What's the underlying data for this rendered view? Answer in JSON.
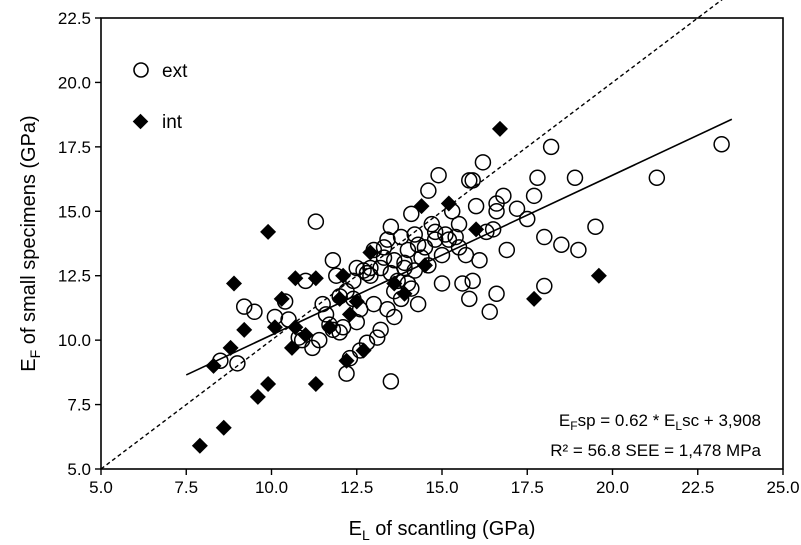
{
  "chart_data": {
    "type": "scatter",
    "xlabel": {
      "main": "E",
      "sub": "L",
      "rest": " of scantling (GPa)"
    },
    "ylabel": {
      "main": "E",
      "sub": "F",
      "rest": " of small specimens (GPa)"
    },
    "xlim": [
      5.0,
      25.0
    ],
    "ylim": [
      5.0,
      22.5
    ],
    "xticks": [
      "5.0",
      "7.5",
      "10.0",
      "12.5",
      "15.0",
      "17.5",
      "20.0",
      "22.5",
      "25.0"
    ],
    "yticks": [
      "5.0",
      "7.5",
      "10.0",
      "12.5",
      "15.0",
      "17.5",
      "20.0",
      "22.5"
    ],
    "grid": false,
    "legend_position": "top-left",
    "series": [
      {
        "name": "ext",
        "marker": "open-circle",
        "color": "#000000",
        "points": [
          [
            23.2,
            17.6
          ],
          [
            21.3,
            16.3
          ],
          [
            19.5,
            14.4
          ],
          [
            19.0,
            13.5
          ],
          [
            18.9,
            16.3
          ],
          [
            18.5,
            13.7
          ],
          [
            18.2,
            17.5
          ],
          [
            18.0,
            14.0
          ],
          [
            18.0,
            12.1
          ],
          [
            17.8,
            16.3
          ],
          [
            17.7,
            15.6
          ],
          [
            17.5,
            14.7
          ],
          [
            16.9,
            13.5
          ],
          [
            16.8,
            15.6
          ],
          [
            16.6,
            15.3
          ],
          [
            16.6,
            15.0
          ],
          [
            16.6,
            11.8
          ],
          [
            16.5,
            14.3
          ],
          [
            16.4,
            11.1
          ],
          [
            16.2,
            16.9
          ],
          [
            16.1,
            13.1
          ],
          [
            15.9,
            16.2
          ],
          [
            15.8,
            16.2
          ],
          [
            15.8,
            11.6
          ],
          [
            15.7,
            13.3
          ],
          [
            15.6,
            12.2
          ],
          [
            15.5,
            13.6
          ],
          [
            15.4,
            14.0
          ],
          [
            15.3,
            15.0
          ],
          [
            15.1,
            14.1
          ],
          [
            15.0,
            13.3
          ],
          [
            14.9,
            16.4
          ],
          [
            14.8,
            13.9
          ],
          [
            14.7,
            14.5
          ],
          [
            14.6,
            15.8
          ],
          [
            14.5,
            13.6
          ],
          [
            14.4,
            13.2
          ],
          [
            14.3,
            13.7
          ],
          [
            14.2,
            14.1
          ],
          [
            14.2,
            12.7
          ],
          [
            14.1,
            14.9
          ],
          [
            14.0,
            13.5
          ],
          [
            14.0,
            12.2
          ],
          [
            13.9,
            13.0
          ],
          [
            13.8,
            11.6
          ],
          [
            13.7,
            12.3
          ],
          [
            13.6,
            13.1
          ],
          [
            13.6,
            11.9
          ],
          [
            13.5,
            14.4
          ],
          [
            13.5,
            12.6
          ],
          [
            13.4,
            13.9
          ],
          [
            13.4,
            11.2
          ],
          [
            13.3,
            13.6
          ],
          [
            13.3,
            13.2
          ],
          [
            13.2,
            12.8
          ],
          [
            13.2,
            10.4
          ],
          [
            13.1,
            10.1
          ],
          [
            13.0,
            13.5
          ],
          [
            12.9,
            12.8
          ],
          [
            12.8,
            12.6
          ],
          [
            12.8,
            9.9
          ],
          [
            12.7,
            12.7
          ],
          [
            12.6,
            11.2
          ],
          [
            12.5,
            12.8
          ],
          [
            12.5,
            10.7
          ],
          [
            12.4,
            12.3
          ],
          [
            12.3,
            9.3
          ],
          [
            12.2,
            8.7
          ],
          [
            12.1,
            10.5
          ],
          [
            12.0,
            11.7
          ],
          [
            12.0,
            10.3
          ],
          [
            11.9,
            12.5
          ],
          [
            11.8,
            13.1
          ],
          [
            11.7,
            10.6
          ],
          [
            11.5,
            11.4
          ],
          [
            11.3,
            14.6
          ],
          [
            11.2,
            9.7
          ],
          [
            11.0,
            12.3
          ],
          [
            10.9,
            10.0
          ],
          [
            10.8,
            10.1
          ],
          [
            10.5,
            10.8
          ],
          [
            10.1,
            10.9
          ],
          [
            9.5,
            11.1
          ],
          [
            9.2,
            11.3
          ],
          [
            9.0,
            9.1
          ],
          [
            8.5,
            9.2
          ],
          [
            13.5,
            8.4
          ],
          [
            16.0,
            15.2
          ],
          [
            15.9,
            12.3
          ],
          [
            15.2,
            13.9
          ],
          [
            14.6,
            12.9
          ],
          [
            14.1,
            12.0
          ],
          [
            13.8,
            14.0
          ],
          [
            12.9,
            12.5
          ],
          [
            12.2,
            11.9
          ],
          [
            11.6,
            11.0
          ],
          [
            10.4,
            11.5
          ],
          [
            15.5,
            14.5
          ],
          [
            14.8,
            14.2
          ],
          [
            13.9,
            12.8
          ],
          [
            13.0,
            11.4
          ],
          [
            12.4,
            11.6
          ],
          [
            11.8,
            10.4
          ],
          [
            16.3,
            14.2
          ],
          [
            17.2,
            15.1
          ],
          [
            15.0,
            12.2
          ],
          [
            14.3,
            11.4
          ],
          [
            13.6,
            10.9
          ],
          [
            12.6,
            9.6
          ],
          [
            11.4,
            10.0
          ]
        ]
      },
      {
        "name": "int",
        "marker": "filled-diamond",
        "color": "#000000",
        "points": [
          [
            16.7,
            18.2
          ],
          [
            19.6,
            12.5
          ],
          [
            17.7,
            11.6
          ],
          [
            16.0,
            14.3
          ],
          [
            15.2,
            15.3
          ],
          [
            14.4,
            15.2
          ],
          [
            13.9,
            11.8
          ],
          [
            12.7,
            9.6
          ],
          [
            12.5,
            11.5
          ],
          [
            12.3,
            11.0
          ],
          [
            12.2,
            9.2
          ],
          [
            12.0,
            11.6
          ],
          [
            11.7,
            10.5
          ],
          [
            11.3,
            12.4
          ],
          [
            11.3,
            8.3
          ],
          [
            10.7,
            12.4
          ],
          [
            10.6,
            9.7
          ],
          [
            10.3,
            11.6
          ],
          [
            10.1,
            10.5
          ],
          [
            9.9,
            14.2
          ],
          [
            9.9,
            8.3
          ],
          [
            9.6,
            7.8
          ],
          [
            9.2,
            10.4
          ],
          [
            8.9,
            12.2
          ],
          [
            8.8,
            9.7
          ],
          [
            8.6,
            6.6
          ],
          [
            8.3,
            9.0
          ],
          [
            7.9,
            5.9
          ],
          [
            11.0,
            10.2
          ],
          [
            14.5,
            12.9
          ],
          [
            12.1,
            12.5
          ],
          [
            13.6,
            12.2
          ],
          [
            12.9,
            13.4
          ],
          [
            10.7,
            10.5
          ]
        ]
      }
    ],
    "regression": {
      "slope": 0.62,
      "intercept": 4.0,
      "x_range": [
        7.5,
        23.5
      ],
      "style": "solid"
    },
    "identity_line": {
      "x_range": [
        5.0,
        25.0
      ],
      "style": "dashed"
    },
    "annotation": {
      "line1": {
        "a": "E",
        "a_sub": "F",
        "b": "sp = 0.62 * E",
        "b_sub": "L",
        "c": "sc + 3,908"
      },
      "line2": "R² = 56.8 SEE = 1,478 MPa"
    }
  }
}
